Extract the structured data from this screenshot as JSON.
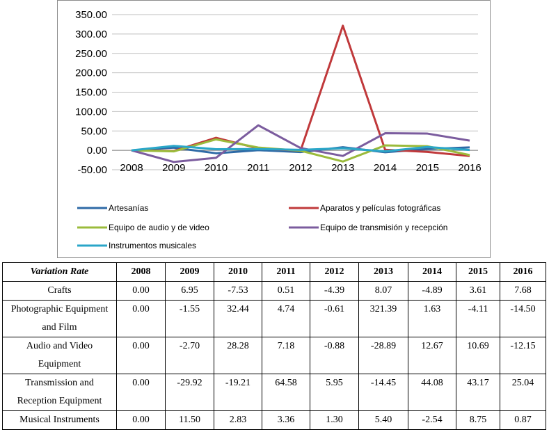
{
  "chart_data": {
    "type": "line",
    "title": "",
    "xlabel": "",
    "ylabel": "",
    "categories": [
      "2008",
      "2009",
      "2010",
      "2011",
      "2012",
      "2013",
      "2014",
      "2015",
      "2016"
    ],
    "ylim": [
      -50,
      350
    ],
    "yticks": [
      "350.00",
      "300.00",
      "250.00",
      "200.00",
      "150.00",
      "100.00",
      "50.00",
      "0.00",
      "-50.00"
    ],
    "ytick_values": [
      350,
      300,
      250,
      200,
      150,
      100,
      50,
      0,
      -50
    ],
    "legend_position": "bottom",
    "series": [
      {
        "name": "Artesanías",
        "color": "#2e6aa6",
        "values": [
          0.0,
          6.95,
          -7.53,
          0.51,
          -4.39,
          8.07,
          -4.89,
          3.61,
          7.68
        ]
      },
      {
        "name": "Aparatos y películas fotográficas",
        "color": "#c0393b",
        "values": [
          0.0,
          -1.55,
          32.44,
          4.74,
          -0.61,
          321.39,
          1.63,
          -4.11,
          -14.5
        ]
      },
      {
        "name": "Equipo de audio y de video",
        "color": "#9bbb3b",
        "values": [
          0.0,
          -2.7,
          28.28,
          7.18,
          -0.88,
          -28.89,
          12.67,
          10.69,
          -12.15
        ]
      },
      {
        "name": "Equipo de transmisión y recepción",
        "color": "#7b5c9e",
        "values": [
          0.0,
          -29.92,
          -19.21,
          64.58,
          5.95,
          -14.45,
          44.08,
          43.17,
          25.04
        ]
      },
      {
        "name": "Instrumentos musicales",
        "color": "#2aa6c8",
        "values": [
          0.0,
          11.5,
          2.83,
          3.36,
          1.3,
          5.4,
          -2.54,
          8.75,
          0.87
        ]
      }
    ]
  },
  "table": {
    "header": [
      "Variation Rate",
      "2008",
      "2009",
      "2010",
      "2011",
      "2012",
      "2013",
      "2014",
      "2015",
      "2016"
    ],
    "rows": [
      {
        "label": "Crafts",
        "values": [
          "0.00",
          "6.95",
          "-7.53",
          "0.51",
          "-4.39",
          "8.07",
          "-4.89",
          "3.61",
          "7.68"
        ]
      },
      {
        "label": "Photographic Equipment and Film",
        "values": [
          "0.00",
          "-1.55",
          "32.44",
          "4.74",
          "-0.61",
          "321.39",
          "1.63",
          "-4.11",
          "-14.50"
        ]
      },
      {
        "label": "Audio and Video Equipment",
        "values": [
          "0.00",
          "-2.70",
          "28.28",
          "7.18",
          "-0.88",
          "-28.89",
          "12.67",
          "10.69",
          "-12.15"
        ]
      },
      {
        "label": "Transmission and Reception Equipment",
        "values": [
          "0.00",
          "-29.92",
          "-19.21",
          "64.58",
          "5.95",
          "-14.45",
          "44.08",
          "43.17",
          "25.04"
        ]
      },
      {
        "label": "Musical Instruments",
        "values": [
          "0.00",
          "11.50",
          "2.83",
          "3.36",
          "1.30",
          "5.40",
          "-2.54",
          "8.75",
          "0.87"
        ]
      }
    ]
  }
}
